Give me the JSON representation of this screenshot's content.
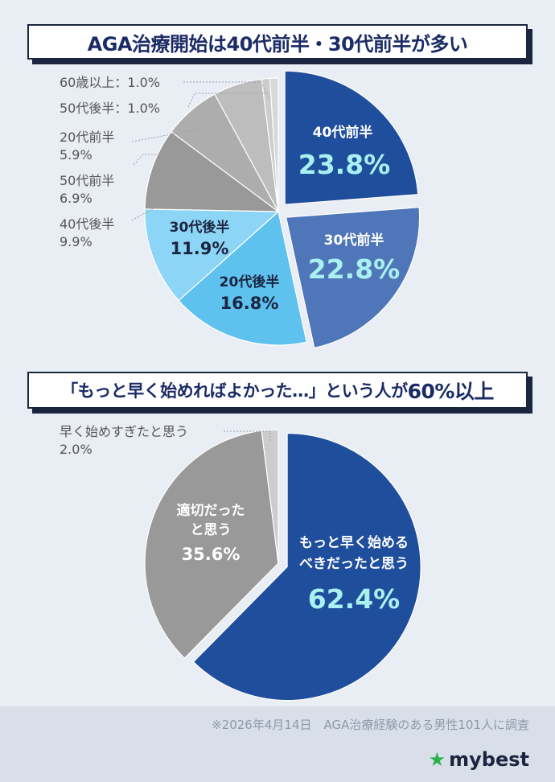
{
  "chart_data": [
    {
      "type": "pie",
      "title": "AGA治療開始は40代前半・30代前半が多い",
      "unit": "%",
      "slices": [
        {
          "label": "40代前半",
          "value": 23.8,
          "color": "#1f4e9c"
        },
        {
          "label": "30代前半",
          "value": 22.8,
          "color": "#4f76b8"
        },
        {
          "label": "20代後半",
          "value": 16.8,
          "color": "#5ec1ee"
        },
        {
          "label": "30代後半",
          "value": 11.9,
          "color": "#8dd5f6"
        },
        {
          "label": "40代後半",
          "value": 9.9,
          "color": "#999999"
        },
        {
          "label": "50代前半",
          "value": 6.9,
          "color": "#adadad"
        },
        {
          "label": "20代前半",
          "value": 5.9,
          "color": "#bdbdbd"
        },
        {
          "label": "50代後半",
          "value": 1.0,
          "color": "#cccccc"
        },
        {
          "label": "60歳以上",
          "value": 1.0,
          "color": "#d8d8d8"
        }
      ]
    },
    {
      "type": "pie",
      "title": "「もっと早く始めればよかった…」という人が60%以上",
      "unit": "%",
      "slices": [
        {
          "label": "もっと早く始めるべきだったと思う",
          "value": 62.4,
          "color": "#1f4e9c"
        },
        {
          "label": "適切だったと思う",
          "value": 35.6,
          "color": "#999999"
        },
        {
          "label": "早く始めすぎたと思う",
          "value": 2.0,
          "color": "#cccccc"
        }
      ]
    }
  ],
  "text": {
    "title1": "AGA治療開始は40代前半・30代前半が多い",
    "title2_main": "「もっと早く始めればよかった…」という人が",
    "title2_big": "60%以上",
    "c1_in_40a_label": "40代前半",
    "c1_in_40a_value": "23.8%",
    "c1_in_30a_label": "30代前半",
    "c1_in_30a_value": "22.8%",
    "c1_in_20b_label": "20代後半",
    "c1_in_20b_value": "16.8%",
    "c1_in_30b_label": "30代後半",
    "c1_in_30b_value": "11.9%",
    "c1_out_60": "60歳以上：1.0%",
    "c1_out_50b": "50代後半：1.0%",
    "c1_out_20a_label": "20代前半",
    "c1_out_20a_value": "5.9%",
    "c1_out_50a_label": "50代前半",
    "c1_out_50a_value": "6.9%",
    "c1_out_40b_label": "40代後半",
    "c1_out_40b_value": "9.9%",
    "c2_in_should_l1": "もっと早く始める",
    "c2_in_should_l2": "べきだったと思う",
    "c2_in_should_value": "62.4%",
    "c2_in_ok_l1": "適切だった",
    "c2_in_ok_l2": "と思う",
    "c2_in_ok_value": "35.6%",
    "c2_out_early_label": "早く始めすぎたと思う",
    "c2_out_early_value": "2.0%",
    "footer_note": "※2026年4月14日　AGA治療経験のある男性101人に調査",
    "logo": "mybest"
  }
}
